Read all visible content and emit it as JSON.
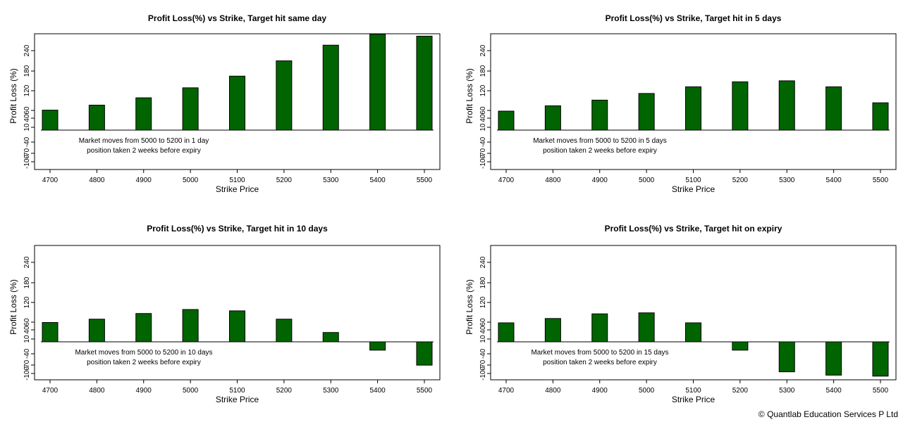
{
  "chart_data": [
    {
      "type": "bar",
      "title": "Profit Loss(%) vs Strike, Target hit same day",
      "xlabel": "Strike Price",
      "ylabel": "Profit Loss (%)",
      "categories": [
        "4700",
        "4800",
        "4900",
        "5000",
        "5100",
        "5200",
        "5300",
        "5400",
        "5500"
      ],
      "values": [
        60,
        75,
        97,
        127,
        162,
        208,
        255,
        288,
        282
      ],
      "yticks": [
        "-100",
        "-70",
        "-40",
        "10",
        "40",
        "60",
        "120",
        "180",
        "240"
      ],
      "ylim": [
        -110,
        295
      ],
      "baseline": 0,
      "annotation": [
        "Market moves from 5000 to 5200 in 1 day",
        "position taken 2 weeks before expiry"
      ],
      "bar_color": "#006400",
      "grid": false
    },
    {
      "type": "bar",
      "title": "Profit Loss(%) vs Strike, Target hit in 5 days",
      "xlabel": "Strike Price",
      "ylabel": "Profit Loss (%)",
      "categories": [
        "4700",
        "4800",
        "4900",
        "5000",
        "5100",
        "5200",
        "5300",
        "5400",
        "5500"
      ],
      "values": [
        57,
        73,
        90,
        110,
        130,
        145,
        148,
        130,
        82
      ],
      "yticks": [
        "-100",
        "-70",
        "-40",
        "10",
        "40",
        "60",
        "120",
        "180",
        "240"
      ],
      "ylim": [
        -110,
        295
      ],
      "baseline": 0,
      "annotation": [
        "Market moves from 5000 to 5200 in 5 days",
        "position taken 2 weeks before expiry"
      ],
      "bar_color": "#006400",
      "grid": false
    },
    {
      "type": "bar",
      "title": "Profit Loss(%) vs Strike, Target hit in 10 days",
      "xlabel": "Strike Price",
      "ylabel": "Profit Loss (%)",
      "categories": [
        "4700",
        "4800",
        "4900",
        "5000",
        "5100",
        "5200",
        "5300",
        "5400",
        "5500"
      ],
      "values": [
        58,
        68,
        85,
        97,
        93,
        68,
        28,
        -25,
        -70
      ],
      "yticks": [
        "-100",
        "-70",
        "-40",
        "10",
        "40",
        "60",
        "120",
        "180",
        "240"
      ],
      "ylim": [
        -110,
        295
      ],
      "baseline": 0,
      "annotation": [
        "Market moves from 5000 to 5200 in 10 days",
        "position taken 2 weeks before expiry"
      ],
      "bar_color": "#006400",
      "grid": false
    },
    {
      "type": "bar",
      "title": "Profit Loss(%) vs Strike, Target hit on expiry",
      "xlabel": "Strike Price",
      "ylabel": "Profit Loss (%)",
      "categories": [
        "4700",
        "4800",
        "4900",
        "5000",
        "5100",
        "5200",
        "5300",
        "5400",
        "5500"
      ],
      "values": [
        57,
        70,
        84,
        87,
        57,
        -25,
        -90,
        -100,
        -103
      ],
      "yticks": [
        "-100",
        "-70",
        "-40",
        "10",
        "40",
        "60",
        "120",
        "180",
        "240"
      ],
      "ylim": [
        -110,
        295
      ],
      "baseline": 0,
      "annotation": [
        "Market moves from 5000 to 5200 in 15 days",
        "position taken 2 weeks before expiry"
      ],
      "bar_color": "#006400",
      "grid": false
    }
  ],
  "footer": {
    "copyright": "© Quantlab Education Services P Ltd"
  }
}
